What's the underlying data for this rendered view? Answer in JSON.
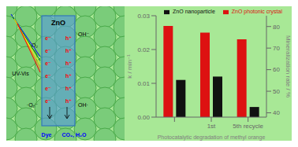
{
  "chart_data": {
    "type": "bar",
    "categories": [
      null,
      "1st",
      "5th recycle"
    ],
    "series": [
      {
        "name": "ZnO photonic crystal",
        "color": "#dd1111",
        "values": [
          0.027,
          0.025,
          0.023
        ]
      },
      {
        "name": "ZnO nanoparticle",
        "color": "#111111",
        "values": [
          0.011,
          0.012,
          0.003
        ]
      }
    ],
    "x_label": "Photocatalytic degradation of methyl orange",
    "y_label": "k / min⁻¹",
    "y2_label": "Mineralization rate / %",
    "ylim": [
      0,
      0.03
    ],
    "yticks": [
      {
        "value": 0,
        "label": "0.00"
      },
      0.01,
      0.02,
      0.03
    ],
    "y2lim": [
      38,
      85
    ],
    "y2ticks": [
      40,
      50,
      60,
      70,
      80
    ],
    "legend": "upper right",
    "annotations": [
      "ZnO",
      "e⁻",
      "h⁺",
      "OH⁻",
      "OH·",
      "O₂",
      "·O₂⁻",
      "UV-Vis",
      "Dye",
      "CO₂, H₂O"
    ]
  }
}
